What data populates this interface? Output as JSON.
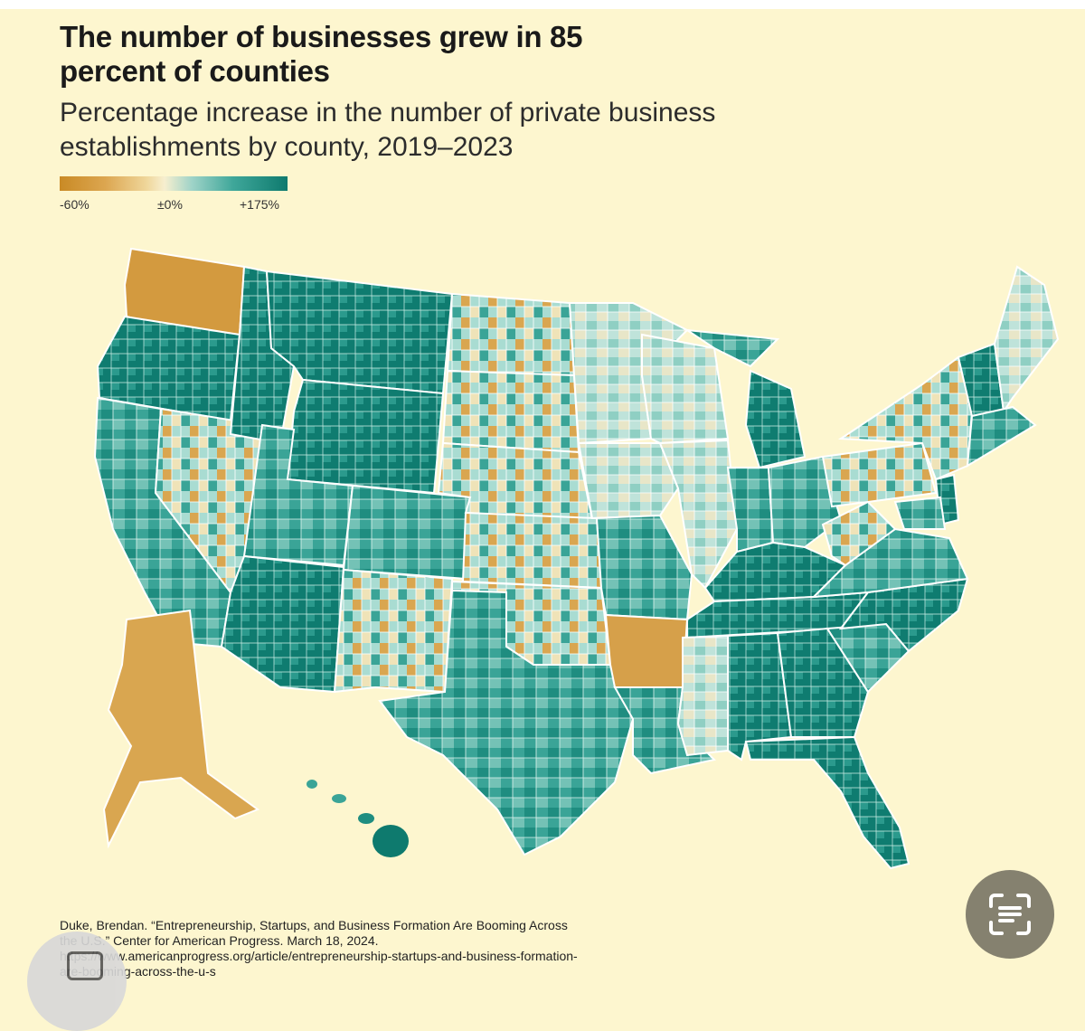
{
  "header": {
    "title": "The number of businesses grew in 85 percent of counties",
    "subtitle": "Percentage increase in the number of private business establishments by county, 2019–2023"
  },
  "legend": {
    "min_label": "-60%",
    "mid_label": "±0%",
    "max_label": "+175%",
    "colors": [
      "#c98a25",
      "#f7efcf",
      "#0e7a6e"
    ]
  },
  "citation": {
    "text": "Duke, Brendan. “Entrepreneurship, Startups, and Business Formation Are Booming Across the U.S.” Center for American Progress. March 18, 2024. https://www.americanprogress.org/article/entrepreneurship-startups-and-business-formation-are-booming-across-the-u-s"
  },
  "icons": {
    "lens_button": "text-scan-icon",
    "camera": "camera-icon"
  },
  "colors": {
    "background": "#fdf6cf",
    "decline": "#d29a3f",
    "neutral": "#f3ecd0",
    "growth_light": "#8fcfc3",
    "growth_mid": "#3aa497",
    "growth_dark": "#0e7a6e"
  }
}
